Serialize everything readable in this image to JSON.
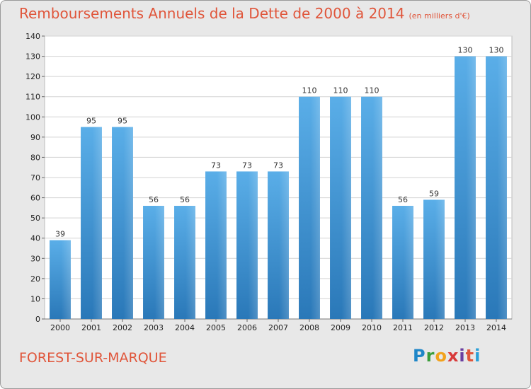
{
  "chart_data": {
    "type": "bar",
    "title": "Remboursements Annuels de la Dette de 2000 à 2014",
    "subtitle": "(en milliers d'€)",
    "categories": [
      "2000",
      "2001",
      "2002",
      "2003",
      "2004",
      "2005",
      "2006",
      "2007",
      "2008",
      "2009",
      "2010",
      "2011",
      "2012",
      "2013",
      "2014"
    ],
    "values": [
      39,
      95,
      95,
      56,
      56,
      73,
      73,
      73,
      110,
      110,
      110,
      56,
      59,
      130,
      130
    ],
    "ylim": [
      0,
      140
    ],
    "yticks": [
      0,
      10,
      20,
      30,
      40,
      50,
      60,
      70,
      80,
      90,
      100,
      110,
      120,
      130,
      140
    ],
    "xlabel": "",
    "ylabel": "",
    "grid": true,
    "bar_color": "#3d8fcf"
  },
  "footer": {
    "place": "FOREST-SUR-MARQUE",
    "logo": [
      "P",
      "r",
      "o",
      "x",
      "i",
      "t",
      "i"
    ]
  }
}
